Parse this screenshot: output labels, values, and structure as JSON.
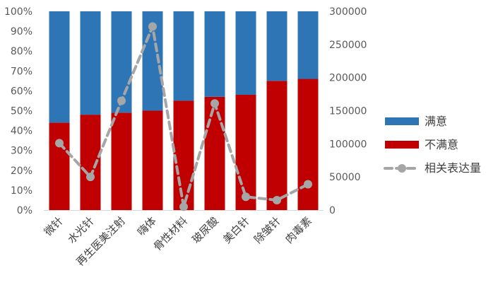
{
  "colors": {
    "satisfied": "#2E75B6",
    "unsatisfied": "#C00000",
    "line": "#A6A6A6",
    "axis": "#D9D9D9"
  },
  "legend": {
    "satisfied": "满意",
    "unsatisfied": "不满意",
    "volume": "相关表达量"
  },
  "chart_data": {
    "type": "bar",
    "stacked": true,
    "categories": [
      "微针",
      "水光针",
      "再生医美注射",
      "嗨体",
      "骨性材料",
      "玻尿酸",
      "美白针",
      "除皱针",
      "肉毒素"
    ],
    "series": [
      {
        "name": "不满意",
        "axis": "left",
        "values": [
          0.44,
          0.48,
          0.49,
          0.5,
          0.55,
          0.57,
          0.58,
          0.65,
          0.66
        ]
      },
      {
        "name": "满意",
        "axis": "left",
        "values": [
          0.56,
          0.52,
          0.51,
          0.5,
          0.45,
          0.43,
          0.42,
          0.35,
          0.34
        ]
      },
      {
        "name": "相关表达量",
        "type": "line",
        "axis": "right",
        "style": "dashed",
        "values": [
          101000,
          50000,
          165000,
          277000,
          5000,
          161000,
          20000,
          15000,
          39000
        ]
      }
    ],
    "y_left_ticks": [
      "0%",
      "10%",
      "20%",
      "30%",
      "40%",
      "50%",
      "60%",
      "70%",
      "80%",
      "90%",
      "100%"
    ],
    "y_right_ticks": [
      "0",
      "50000",
      "100000",
      "150000",
      "200000",
      "250000",
      "300000"
    ],
    "ylim_left": [
      0,
      1
    ],
    "ylim_right": [
      0,
      300000
    ],
    "legend_position": "right",
    "grid": false
  }
}
